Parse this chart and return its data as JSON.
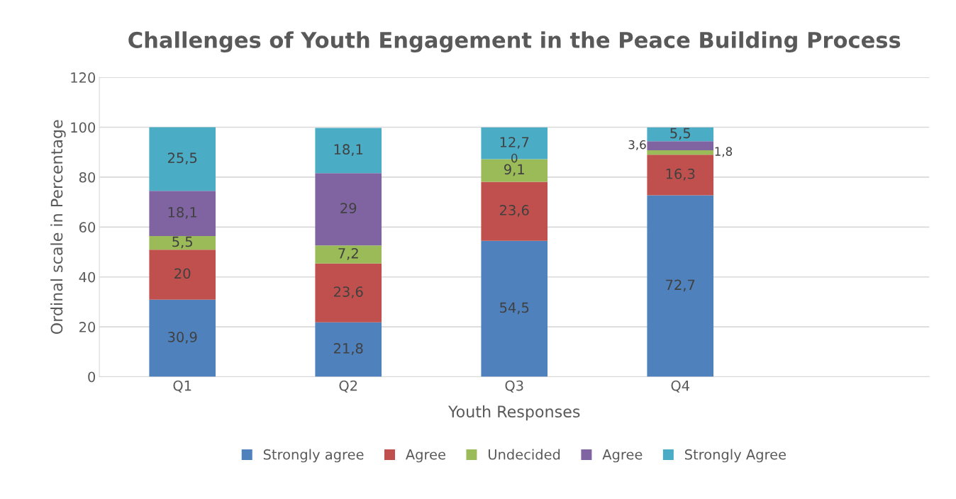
{
  "chart_data": {
    "type": "bar",
    "title": "Challenges of Youth Engagement in the Peace Building Process",
    "xlabel": "Youth Responses",
    "ylabel": "Ordinal scale in Percentage",
    "categories": [
      "Q1",
      "Q2",
      "Q3",
      "Q4",
      null
    ],
    "stacked": true,
    "ylim": [
      0,
      120
    ],
    "yticks": [
      0,
      20,
      40,
      60,
      80,
      100,
      120
    ],
    "grid": "y",
    "legend": "bottom",
    "series": [
      {
        "name": "Strongly agree",
        "color": "#4f81bd",
        "values": [
          30.9,
          21.8,
          54.5,
          72.7,
          null
        ],
        "value_labels": [
          "30,9",
          "21,8",
          "54,5",
          "72,7",
          null
        ]
      },
      {
        "name": "Agree",
        "color": "#c0504d",
        "values": [
          20,
          23.6,
          23.6,
          16.3,
          null
        ],
        "value_labels": [
          "20",
          "23,6",
          "23,6",
          "16,3",
          null
        ]
      },
      {
        "name": "Undecided",
        "color": "#9bbb59",
        "values": [
          5.5,
          7.2,
          9.1,
          1.8,
          null
        ],
        "value_labels": [
          "5,5",
          "7,2",
          "9,1",
          "1,8",
          null
        ]
      },
      {
        "name": "Agree",
        "color": "#8064a2",
        "values": [
          18.1,
          29,
          0,
          3.6,
          null
        ],
        "value_labels": [
          "18,1",
          "29",
          "0",
          "3,6",
          null
        ]
      },
      {
        "name": "Strongly Agree",
        "color": "#4bacc6",
        "values": [
          25.5,
          18.1,
          12.7,
          5.5,
          null
        ],
        "value_labels": [
          "25,5",
          "18,1",
          "12,7",
          "5,5",
          null
        ]
      }
    ]
  }
}
